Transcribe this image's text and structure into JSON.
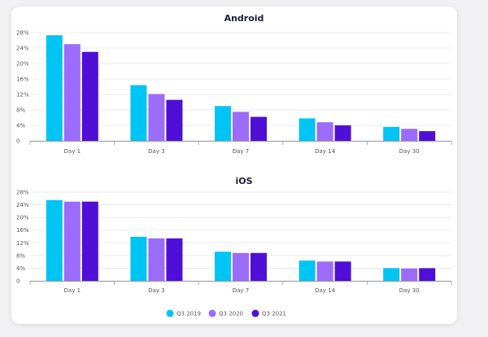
{
  "colors": {
    "Q3 2019": "#00c4f4",
    "Q3 2020": "#9b6cf9",
    "Q3 2021": "#4f0fd6"
  },
  "legend": [
    "Q3 2019",
    "Q3 2020",
    "Q3 2021"
  ],
  "chart_data": [
    {
      "type": "bar",
      "title": "Android",
      "categories": [
        "Day 1",
        "Day 3",
        "Day 7",
        "Day 14",
        "Day 30"
      ],
      "yticks": [
        "0",
        "4%",
        "8%",
        "12%",
        "16%",
        "20%",
        "24%",
        "28%"
      ],
      "ylim": [
        0,
        28
      ],
      "grid": true,
      "series": [
        {
          "name": "Q3 2019",
          "values": [
            27.3,
            14.4,
            9.0,
            5.8,
            3.6
          ]
        },
        {
          "name": "Q3 2020",
          "values": [
            25.0,
            12.1,
            7.5,
            4.8,
            3.1
          ]
        },
        {
          "name": "Q3 2021",
          "values": [
            23.0,
            10.6,
            6.2,
            4.0,
            2.5
          ]
        }
      ]
    },
    {
      "type": "bar",
      "title": "iOS",
      "categories": [
        "Day 1",
        "Day 3",
        "Day 7",
        "Day 14",
        "Day 30"
      ],
      "yticks": [
        "0",
        "4%",
        "8%",
        "12%",
        "16%",
        "20%",
        "24%",
        "28%"
      ],
      "ylim": [
        0,
        28
      ],
      "grid": true,
      "series": [
        {
          "name": "Q3 2019",
          "values": [
            25.5,
            13.9,
            9.2,
            6.4,
            4.0
          ]
        },
        {
          "name": "Q3 2020",
          "values": [
            25.0,
            13.4,
            8.8,
            6.1,
            3.9
          ]
        },
        {
          "name": "Q3 2021",
          "values": [
            25.0,
            13.4,
            8.8,
            6.1,
            4.0
          ]
        }
      ]
    }
  ]
}
